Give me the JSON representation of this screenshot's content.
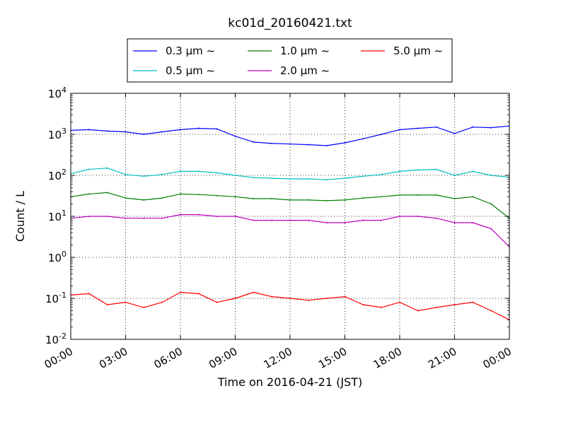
{
  "chart_data": {
    "type": "line",
    "title": "kc01d_20160421.txt",
    "xlabel": "Time on 2016-04-21 (JST)",
    "ylabel": "Count / L",
    "yscale": "log",
    "ylim": [
      0.01,
      10000
    ],
    "xlim": [
      "2016-04-21 00:00",
      "2016-04-22 00:00"
    ],
    "grid": true,
    "legend_position": "top-center",
    "x_tick_labels": [
      "00:00",
      "03:00",
      "06:00",
      "09:00",
      "12:00",
      "15:00",
      "18:00",
      "21:00",
      "00:00"
    ],
    "y_ticks": [
      {
        "base": "10",
        "exp": "-2"
      },
      {
        "base": "10",
        "exp": "-1"
      },
      {
        "base": "10",
        "exp": "0"
      },
      {
        "base": "10",
        "exp": "1"
      },
      {
        "base": "10",
        "exp": "2"
      },
      {
        "base": "10",
        "exp": "3"
      },
      {
        "base": "10",
        "exp": "4"
      }
    ],
    "x": [
      "00:00",
      "01:00",
      "02:00",
      "03:00",
      "04:00",
      "05:00",
      "06:00",
      "07:00",
      "08:00",
      "09:00",
      "10:00",
      "11:00",
      "12:00",
      "13:00",
      "14:00",
      "15:00",
      "16:00",
      "17:00",
      "18:00",
      "19:00",
      "20:00",
      "21:00",
      "22:00",
      "23:00",
      "24:00"
    ],
    "series": [
      {
        "name": "0.3 μm ~",
        "color": "#0000ff",
        "values": [
          1250,
          1300,
          1200,
          1150,
          1000,
          1150,
          1300,
          1400,
          1350,
          900,
          650,
          600,
          580,
          560,
          530,
          620,
          780,
          1000,
          1300,
          1400,
          1500,
          1050,
          1500,
          1450,
          1600
        ]
      },
      {
        "name": "0.5 μm ~",
        "color": "#00bfbf",
        "values": [
          110,
          140,
          150,
          105,
          95,
          105,
          125,
          125,
          115,
          100,
          88,
          85,
          82,
          82,
          78,
          85,
          95,
          105,
          125,
          135,
          140,
          100,
          125,
          100,
          90
        ]
      },
      {
        "name": "1.0 μm ~",
        "color": "#008000",
        "values": [
          30,
          35,
          38,
          28,
          25,
          28,
          35,
          34,
          32,
          30,
          27,
          27,
          25,
          25,
          24,
          25,
          28,
          30,
          33,
          33,
          33,
          27,
          30,
          20,
          9
        ]
      },
      {
        "name": "2.0 μm ~",
        "color": "#bf00bf",
        "values": [
          9,
          10,
          10,
          9,
          9,
          9,
          11,
          11,
          10,
          10,
          8,
          8,
          8,
          8,
          7,
          7,
          8,
          8,
          10,
          10,
          9,
          7,
          7,
          5,
          1.8
        ]
      },
      {
        "name": "5.0 μm ~",
        "color": "#ff0000",
        "values": [
          0.12,
          0.13,
          0.07,
          0.08,
          0.06,
          0.08,
          0.14,
          0.13,
          0.08,
          0.1,
          0.14,
          0.11,
          0.1,
          0.09,
          0.1,
          0.11,
          0.07,
          0.06,
          0.08,
          0.05,
          0.06,
          0.07,
          0.08,
          0.05,
          0.03
        ]
      }
    ]
  }
}
